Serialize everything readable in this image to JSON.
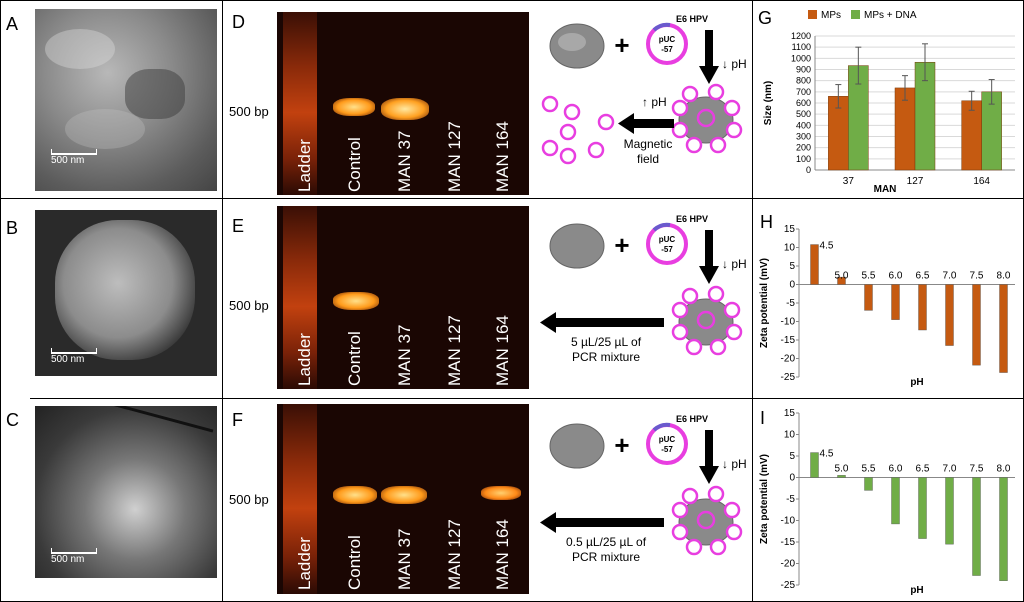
{
  "panels": {
    "A": "A",
    "B": "B",
    "C": "C",
    "D": "D",
    "E": "E",
    "F": "F",
    "G": "G",
    "H": "H",
    "I": "I"
  },
  "sem": {
    "scale_label": "500 nm"
  },
  "gel": {
    "marker": "500 bp",
    "lanes": [
      "Ladder",
      "Control",
      "MAN 37",
      "MAN 127",
      "MAN 164"
    ]
  },
  "schematic": {
    "plasmid_label_top": "pUC",
    "plasmid_label_bottom": "-57",
    "gene_label": "E6 HPV",
    "ph_down": "↓ pH",
    "ph_up": "↑ pH",
    "magnetic_field": [
      "Magnetic",
      "field"
    ],
    "pcr_E": [
      "5 µL/25 µL of",
      "PCR mixture"
    ],
    "pcr_F": [
      "0.5 µL/25 µL of",
      "PCR mixture"
    ]
  },
  "colors": {
    "orange": "#c55a11",
    "green": "#70ad47",
    "magenta": "#e83ee0"
  },
  "chart_data": [
    {
      "id": "G",
      "type": "bar",
      "categories": [
        "37",
        "127",
        "164"
      ],
      "series": [
        {
          "name": "MPs",
          "values": [
            660,
            735,
            620
          ],
          "errors": [
            105,
            110,
            85
          ]
        },
        {
          "name": "MPs + DNA",
          "values": [
            935,
            965,
            700
          ],
          "errors": [
            165,
            165,
            110
          ]
        }
      ],
      "xlabel": "MAN",
      "ylabel": "Size (nm)",
      "ylim": [
        0,
        1200
      ],
      "yticks": [
        0,
        100,
        200,
        300,
        400,
        500,
        600,
        700,
        800,
        900,
        1000,
        1100,
        1200
      ],
      "legend": "top"
    },
    {
      "id": "H",
      "type": "bar",
      "categories": [
        "4.5",
        "5.0",
        "5.5",
        "6.0",
        "6.5",
        "7.0",
        "7.5",
        "8.0"
      ],
      "series": [
        {
          "values": [
            10.8,
            2.0,
            -7.0,
            -9.5,
            -12.3,
            -16.5,
            -21.8,
            -23.8
          ]
        }
      ],
      "xlabel": "pH",
      "ylabel": "Zeta potential (mV)",
      "ylim": [
        -25,
        15
      ],
      "yticks": [
        15,
        10,
        5,
        0,
        -5,
        -10,
        -15,
        -20,
        -25
      ]
    },
    {
      "id": "I",
      "type": "bar",
      "categories": [
        "4.5",
        "5.0",
        "5.5",
        "6.0",
        "6.5",
        "7.0",
        "7.5",
        "8.0"
      ],
      "series": [
        {
          "values": [
            5.8,
            0.5,
            -3.0,
            -10.8,
            -14.2,
            -15.5,
            -22.8,
            -24.0
          ]
        }
      ],
      "xlabel": "pH",
      "ylabel": "Zeta potential (mV)",
      "ylim": [
        -25,
        15
      ],
      "yticks": [
        15,
        10,
        5,
        0,
        -5,
        -10,
        -15,
        -20,
        -25
      ]
    }
  ]
}
